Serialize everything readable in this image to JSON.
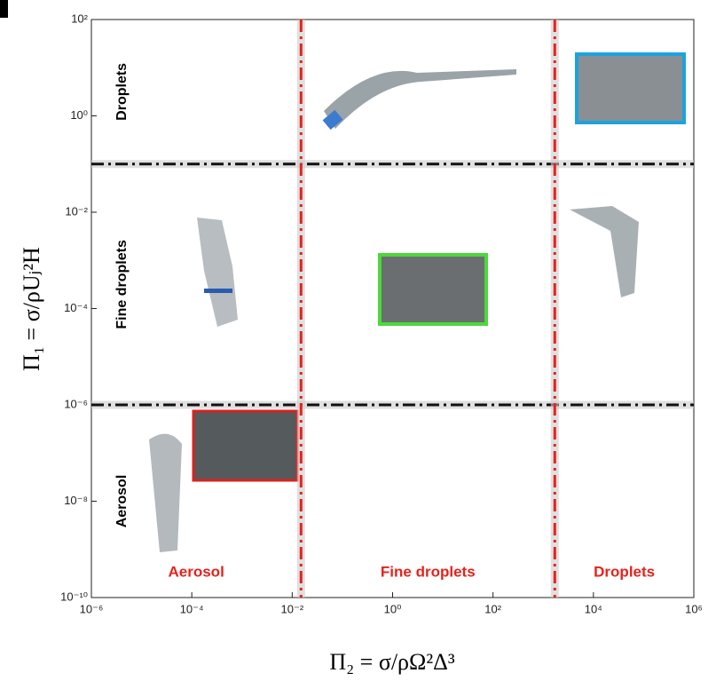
{
  "chart_data": {
    "type": "regime",
    "xlabel": "Π₂ = σ/ρΩ²Δ³",
    "ylabel": "Π₁ = σ/ρUⱼ²H",
    "xlog": true,
    "ylog": true,
    "xlim": [
      1e-06,
      1000000
    ],
    "ylim": [
      1e-10,
      100
    ],
    "xticks": [
      {
        "value": 1e-06,
        "label": "10⁻⁶"
      },
      {
        "value": 0.0001,
        "label": "10⁻⁴"
      },
      {
        "value": 0.01,
        "label": "10⁻²"
      },
      {
        "value": 1,
        "label": "10⁰"
      },
      {
        "value": 100,
        "label": "10²"
      },
      {
        "value": 10000,
        "label": "10⁴"
      },
      {
        "value": 1000000,
        "label": "10⁶"
      }
    ],
    "yticks": [
      {
        "value": 1e-10,
        "label": "10⁻¹⁰"
      },
      {
        "value": 1e-08,
        "label": "10⁻⁸"
      },
      {
        "value": 1e-06,
        "label": "10⁻⁶"
      },
      {
        "value": 0.0001,
        "label": "10⁻⁴"
      },
      {
        "value": 0.01,
        "label": "10⁻²"
      },
      {
        "value": 1,
        "label": "10⁰"
      },
      {
        "value": 100,
        "label": "10²"
      }
    ],
    "vlines": {
      "values": [
        0.015,
        1700
      ],
      "color": "#e8211b"
    },
    "hlines": {
      "values": [
        0.1,
        1e-06
      ],
      "color": "#111111"
    },
    "x_regions": [
      "Aerosol",
      "Fine droplets",
      "Droplets"
    ],
    "y_regions": [
      "Droplets",
      "Fine droplets",
      "Aerosol"
    ]
  }
}
